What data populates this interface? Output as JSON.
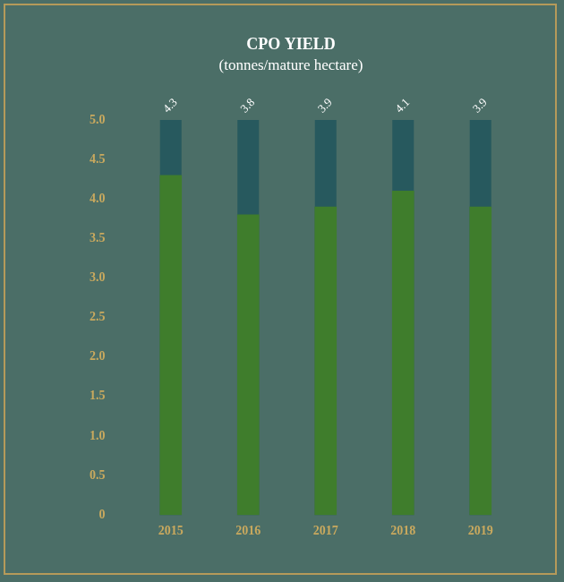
{
  "chart_data": {
    "type": "bar",
    "title": "CPO YIELD",
    "subtitle": "(tonnes/mature hectare)",
    "categories": [
      "2015",
      "2016",
      "2017",
      "2018",
      "2019"
    ],
    "values": [
      4.3,
      3.8,
      3.9,
      4.1,
      3.9
    ],
    "color": "#3f7d2c",
    "ylim": [
      0,
      5
    ],
    "yticks": [
      0,
      0.5,
      {
        "value": 1,
        "label": "1.0"
      },
      1.5,
      {
        "value": 2,
        "label": "2.0"
      },
      2.5,
      {
        "value": 3,
        "label": "3.0"
      },
      3.5,
      {
        "value": 4,
        "label": "4.0"
      },
      4.5,
      {
        "value": 5,
        "label": "5.0"
      }
    ],
    "grid": false,
    "data_labels": true
  }
}
